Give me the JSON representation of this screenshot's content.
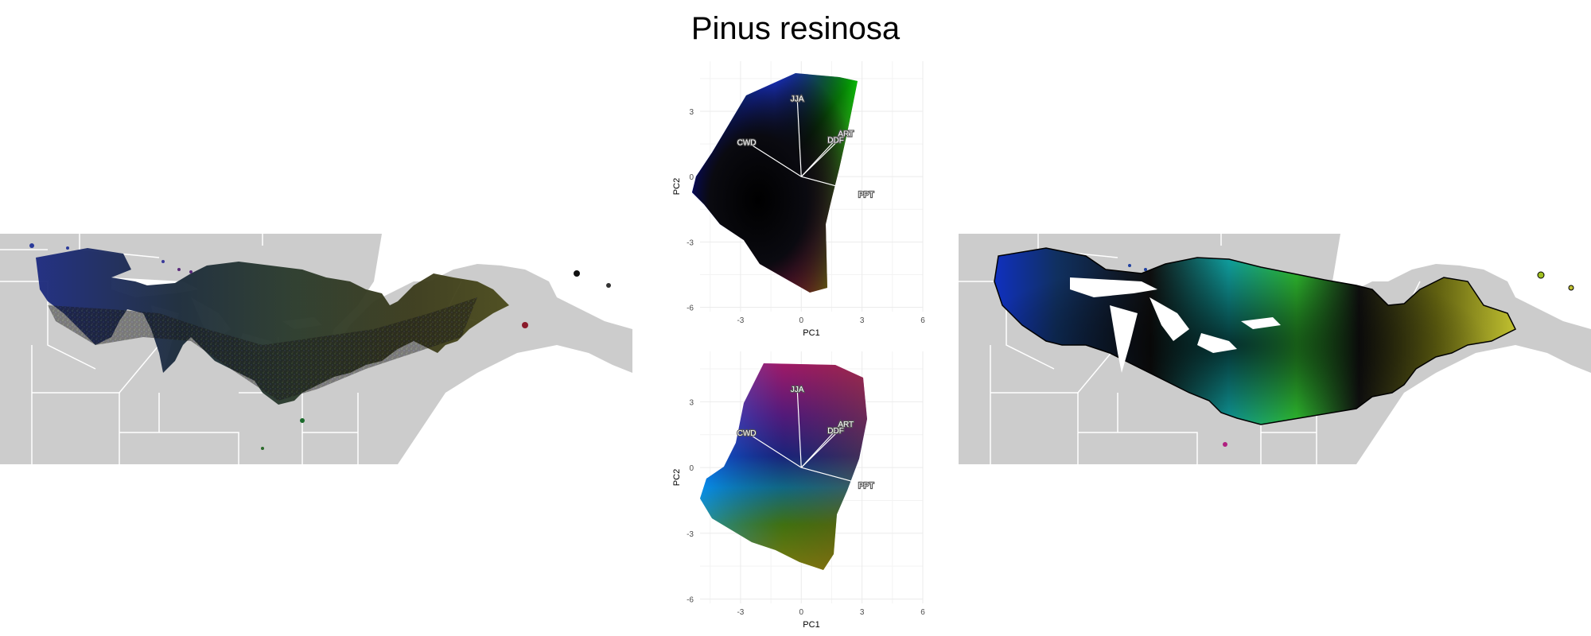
{
  "figure": {
    "title": "Pinus resinosa"
  },
  "colors": {
    "land": "#cccccc",
    "borders": "#ffffff",
    "water": "#ffffff",
    "grid": "#ebebeb",
    "axis_text": "#4d4d4d",
    "vector": "#ffffff"
  },
  "chart_data": [
    {
      "id": "map-left",
      "type": "map",
      "title": "",
      "description_colors": [
        "#1a1a5c",
        "#2a3f80",
        "#0f2a2a",
        "#4a1a5a",
        "#2c4a1a",
        "#5a4a1a",
        "#1a1a1a"
      ]
    },
    {
      "id": "pca-top",
      "type": "scatter",
      "title": "",
      "xlabel": "PC1",
      "ylabel": "PC2",
      "xlim": [
        -5,
        6
      ],
      "ylim": [
        -6.2,
        5.3
      ],
      "xticks": [
        -3,
        0,
        3,
        6
      ],
      "yticks": [
        3,
        0,
        -3,
        -6
      ],
      "tick_labels_x": [
        "-3",
        "0",
        "3",
        "6"
      ],
      "tick_labels_y": [
        "3",
        "0",
        "-3",
        "-6"
      ],
      "grid": true,
      "vectors": [
        {
          "label": "JJA",
          "x": -0.2,
          "y": 3.6
        },
        {
          "label": "CWD",
          "x": -2.7,
          "y": 1.6
        },
        {
          "label": "ART",
          "x": 2.2,
          "y": 2.0
        },
        {
          "label": "DDF",
          "x": 1.7,
          "y": 1.7
        },
        {
          "label": "PPT",
          "x": 3.2,
          "y": -0.8
        }
      ]
    },
    {
      "id": "pca-bottom",
      "type": "scatter",
      "title": "",
      "xlabel": "PC1",
      "ylabel": "PC2",
      "xlim": [
        -5,
        6
      ],
      "ylim": [
        -6.2,
        5.3
      ],
      "xticks": [
        -3,
        0,
        3,
        6
      ],
      "yticks": [
        3,
        0,
        -3,
        -6
      ],
      "tick_labels_x": [
        "-3",
        "0",
        "3",
        "6"
      ],
      "tick_labels_y": [
        "3",
        "0",
        "-3",
        "-6"
      ],
      "grid": true,
      "vectors": [
        {
          "label": "JJA",
          "x": -0.2,
          "y": 3.6
        },
        {
          "label": "CWD",
          "x": -2.7,
          "y": 1.6
        },
        {
          "label": "ART",
          "x": 2.2,
          "y": 2.0
        },
        {
          "label": "DDF",
          "x": 1.7,
          "y": 1.7
        },
        {
          "label": "PPT",
          "x": 3.2,
          "y": -0.8
        }
      ]
    },
    {
      "id": "map-right",
      "type": "map",
      "title": ""
    }
  ]
}
